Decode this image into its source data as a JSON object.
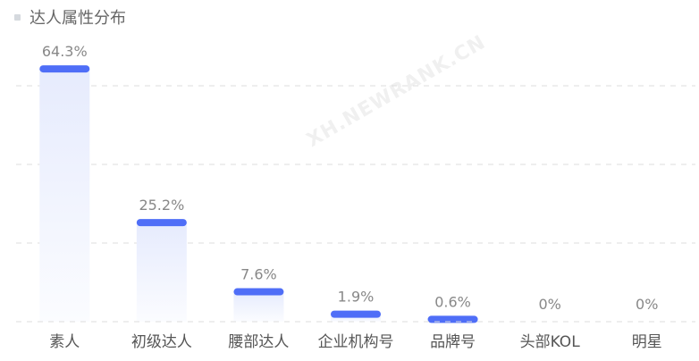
{
  "header": {
    "title": "达人属性分布"
  },
  "watermark": "XH.NEWRANK.CN",
  "chart_data": {
    "type": "bar",
    "title": "达人属性分布",
    "categories": [
      "素人",
      "初级达人",
      "腰部达人",
      "企业机构号",
      "品牌号",
      "头部KOL",
      "明星"
    ],
    "values": [
      64.3,
      25.2,
      7.6,
      1.9,
      0.6,
      0,
      0
    ],
    "data_labels": [
      "64.3%",
      "25.2%",
      "7.6%",
      "1.9%",
      "0.6%",
      "0%",
      "0%"
    ],
    "ylim": [
      0,
      60
    ],
    "grid": true,
    "colors": {
      "bar_cap": "#4f6ef7",
      "bar_fill": "#e9edfd",
      "label": "#888888",
      "grid": "#dddddd"
    }
  }
}
